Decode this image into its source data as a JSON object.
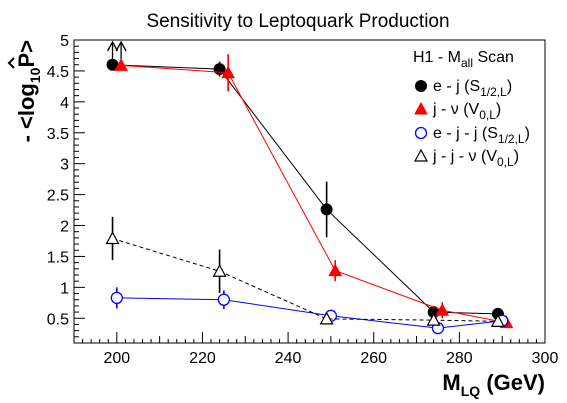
{
  "chart_data": {
    "type": "scatter",
    "title": "Sensitivity to Leptoquark Production",
    "xlabel": {
      "main": "M",
      "sub": "LQ",
      "unit": "(GeV)"
    },
    "ylabel": {
      "prefix": "- <log",
      "sub": "10",
      "hat": "P",
      "suffix": ">"
    },
    "xlim": [
      190,
      300
    ],
    "ylim": [
      0.1,
      5
    ],
    "xticks": [
      200,
      220,
      240,
      260,
      280,
      300
    ],
    "yticks": [
      0.5,
      1,
      1.5,
      2,
      2.5,
      3,
      3.5,
      4,
      4.5,
      5
    ],
    "ytick_labels": [
      "0.5",
      "1",
      "1.5",
      "2",
      "2.5",
      "3",
      "3.5",
      "4",
      "4.5",
      "5"
    ],
    "grid": false,
    "legend_title": {
      "main": "H1 - M",
      "sub": "all",
      "suffix": " Scan"
    },
    "legend_position": "top-right",
    "series": [
      {
        "name": {
          "main": "e - j  (S",
          "sub": "1/2,L",
          "suffix": ")"
        },
        "marker": "filled-circle",
        "color": "#000000",
        "line": "solid",
        "x": [
          199,
          224,
          249,
          274,
          289
        ],
        "y": [
          4.6,
          4.53,
          2.26,
          0.6,
          0.57
        ],
        "err": [
          0,
          0.12,
          0.45,
          0.06,
          0.07
        ],
        "lower_limit_arrow": [
          true,
          false,
          false,
          false,
          false
        ]
      },
      {
        "name": {
          "main": "j - ν  (V",
          "sub": "0,L",
          "suffix": ")"
        },
        "marker": "filled-triangle",
        "color": "#ff0000",
        "line": "solid",
        "x": [
          201,
          226,
          251,
          276,
          291
        ],
        "y": [
          4.59,
          4.47,
          1.27,
          0.63,
          0.43
        ],
        "err": [
          0,
          0.3,
          0.17,
          0.13,
          0.05
        ],
        "lower_limit_arrow": [
          true,
          false,
          false,
          false,
          false
        ]
      },
      {
        "name": {
          "main": "e - j - j  (S",
          "sub": "1/2,L",
          "suffix": ")"
        },
        "marker": "open-circle",
        "color": "#0000ff",
        "line": "solid",
        "x": [
          200,
          225,
          250,
          275,
          290
        ],
        "y": [
          0.83,
          0.8,
          0.54,
          0.34,
          0.46
        ],
        "err": [
          0.17,
          0.15,
          0.08,
          0.05,
          0.05
        ],
        "lower_limit_arrow": [
          false,
          false,
          false,
          false,
          false
        ]
      },
      {
        "name": {
          "main": "j - j - ν  (V",
          "sub": "0,L",
          "suffix": ")"
        },
        "marker": "open-triangle",
        "color": "#000000",
        "line": "dashed",
        "x": [
          199,
          224,
          249,
          274,
          289
        ],
        "y": [
          1.79,
          1.26,
          0.49,
          0.47,
          0.45
        ],
        "err": [
          0.35,
          0.35,
          0.06,
          0.06,
          0.05
        ],
        "lower_limit_arrow": [
          false,
          false,
          false,
          false,
          false
        ]
      }
    ]
  }
}
